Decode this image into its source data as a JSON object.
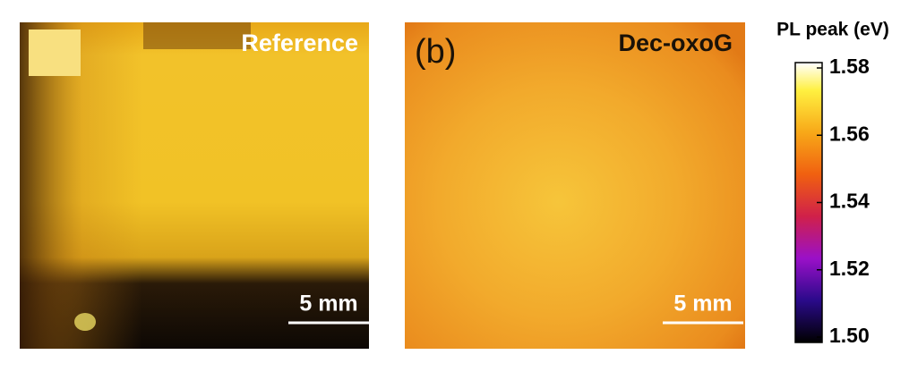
{
  "panels": [
    {
      "label": "Reference",
      "scale_bar": "5 mm"
    },
    {
      "letter": "(b)",
      "label": "Dec-oxoG",
      "scale_bar": "5 mm"
    }
  ],
  "colorbar": {
    "title": "PL peak (eV)",
    "ticks": [
      {
        "value": 1.58,
        "label": "1.58"
      },
      {
        "value": 1.56,
        "label": "1.56"
      },
      {
        "value": 1.54,
        "label": "1.54"
      },
      {
        "value": 1.52,
        "label": "1.52"
      },
      {
        "value": 1.5,
        "label": "1.50"
      }
    ]
  }
}
